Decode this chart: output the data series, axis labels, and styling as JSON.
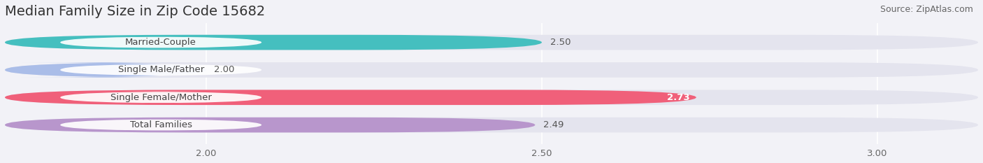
{
  "title": "Median Family Size in Zip Code 15682",
  "source": "Source: ZipAtlas.com",
  "categories": [
    "Married-Couple",
    "Single Male/Father",
    "Single Female/Mother",
    "Total Families"
  ],
  "values": [
    2.5,
    2.0,
    2.73,
    2.49
  ],
  "bar_colors": [
    "#45bfbf",
    "#aabde8",
    "#f0607a",
    "#b896cc"
  ],
  "value_inside": [
    false,
    false,
    true,
    false
  ],
  "xlim_min": 1.7,
  "xlim_max": 3.15,
  "xticks": [
    2.0,
    2.5,
    3.0
  ],
  "xtick_labels": [
    "2.00",
    "2.50",
    "3.00"
  ],
  "background_color": "#f2f2f7",
  "bar_bg_color": "#e4e4ee",
  "bar_sep_color": "#ffffff",
  "title_fontsize": 14,
  "source_fontsize": 9,
  "label_fontsize": 9.5,
  "value_fontsize": 9.5,
  "tick_fontsize": 9.5,
  "bar_height": 0.55,
  "label_box_color": "#ffffff"
}
